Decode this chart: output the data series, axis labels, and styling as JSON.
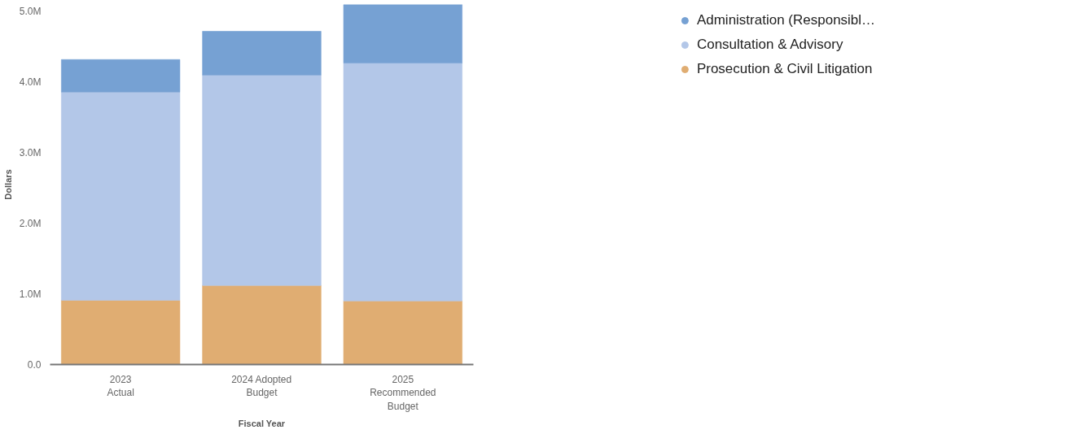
{
  "chart_data": {
    "type": "bar",
    "stacked": true,
    "xlabel": "Fiscal Year",
    "ylabel": "Dollars",
    "categories": [
      "2023\nActual",
      "2024 Adopted\nBudget",
      "2025\nRecommended\nBudget"
    ],
    "series": [
      {
        "name": "Prosecution & Civil Litigation",
        "color": "#e0ad72",
        "values": [
          0.91,
          1.12,
          0.9
        ]
      },
      {
        "name": "Consultation & Advisory",
        "color": "#b3c7e8",
        "values": [
          2.95,
          2.98,
          3.37
        ]
      },
      {
        "name": "Administration (Responsibl…",
        "color": "#76a1d3",
        "values": [
          0.46,
          0.62,
          0.83
        ]
      }
    ],
    "ylim": [
      0,
      5.1
    ],
    "yticks": [
      {
        "value": 0,
        "label": "0.0"
      },
      {
        "value": 1,
        "label": "1.0M"
      },
      {
        "value": 2,
        "label": "2.0M"
      },
      {
        "value": 3,
        "label": "3.0M"
      },
      {
        "value": 4,
        "label": "4.0M"
      },
      {
        "value": 5,
        "label": "5.0M"
      }
    ],
    "grid": false,
    "legend": "top right",
    "marker": "circle"
  }
}
